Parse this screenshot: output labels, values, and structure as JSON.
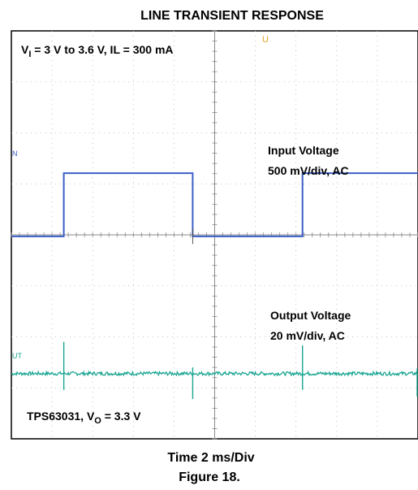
{
  "chart_data": {
    "type": "line",
    "title": "LINE TRANSIENT RESPONSE",
    "xlabel": "Time 2 ms/Div",
    "caption": "Figure 18.",
    "grid": true,
    "divisions": {
      "x": 10,
      "y": 8
    },
    "conditions": {
      "prefix": "V",
      "subscript": "I",
      "text": " = 3 V to 3.6 V, IL = 300 mA"
    },
    "device": {
      "prefix": "TPS63031, V",
      "subscript": "O",
      "text": " = 3.3 V"
    },
    "colors": {
      "input": "#3a5fc8",
      "output": "#1aa591",
      "grid": "#b5b5b5",
      "frame": "#000000"
    },
    "series": [
      {
        "name": "Input Voltage",
        "label_lines": [
          "Input Voltage",
          "500 mV/div, AC"
        ],
        "channel_marker": "N",
        "color": "#3a5fc8",
        "baseline_div": 3.97,
        "step_div": 1.24,
        "high_intervals_div": [
          [
            1.29,
            4.46
          ],
          [
            7.16,
            10.0
          ]
        ],
        "points_div": [
          [
            0,
            3.97
          ],
          [
            1.29,
            3.97
          ],
          [
            1.29,
            5.21
          ],
          [
            4.46,
            5.21
          ],
          [
            4.46,
            3.97
          ],
          [
            7.16,
            3.97
          ],
          [
            7.16,
            5.21
          ],
          [
            10.0,
            5.21
          ]
        ]
      },
      {
        "name": "Output Voltage",
        "label_lines": [
          "Output Voltage",
          "20 mV/div, AC"
        ],
        "channel_marker": "UT",
        "color": "#1aa591",
        "baseline_div": 1.28,
        "transients_div": [
          {
            "x": 1.29,
            "peak": 0.62,
            "dip": -0.32
          },
          {
            "x": 4.46,
            "peak": 0.12,
            "dip": -0.5
          },
          {
            "x": 7.16,
            "peak": 0.55,
            "dip": -0.32
          },
          {
            "x": 10.0,
            "peak": 0.1,
            "dip": -0.45
          }
        ]
      }
    ],
    "trigger_marker": "U"
  }
}
